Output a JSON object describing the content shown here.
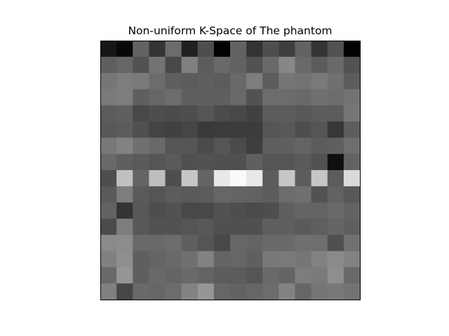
{
  "chart_data": {
    "type": "heatmap",
    "title": "Non-uniform K-Space of The phantom",
    "xlabel": "",
    "ylabel": "",
    "colormap": "gray",
    "value_range": [
      0,
      255
    ],
    "axes_visible": false,
    "grid": false,
    "legend": "none",
    "rows": 16,
    "cols": 16,
    "values": [
      [
        22,
        8,
        98,
        52,
        108,
        32,
        78,
        2,
        98,
        52,
        78,
        62,
        98,
        52,
        82,
        2
      ],
      [
        95,
        102,
        82,
        115,
        72,
        128,
        92,
        105,
        98,
        82,
        105,
        135,
        105,
        92,
        105,
        82
      ],
      [
        118,
        125,
        122,
        108,
        95,
        92,
        95,
        92,
        105,
        125,
        92,
        118,
        115,
        122,
        112,
        92
      ],
      [
        122,
        125,
        95,
        102,
        108,
        95,
        95,
        95,
        105,
        82,
        108,
        108,
        105,
        112,
        108,
        115
      ],
      [
        92,
        95,
        72,
        78,
        75,
        78,
        85,
        75,
        72,
        65,
        92,
        92,
        88,
        92,
        92,
        118
      ],
      [
        88,
        92,
        80,
        68,
        65,
        70,
        58,
        60,
        60,
        60,
        85,
        88,
        78,
        85,
        55,
        92
      ],
      [
        120,
        130,
        112,
        105,
        85,
        85,
        75,
        85,
        75,
        62,
        95,
        95,
        100,
        92,
        95,
        110
      ],
      [
        105,
        95,
        90,
        85,
        90,
        80,
        82,
        80,
        80,
        95,
        85,
        85,
        90,
        82,
        15,
        98
      ],
      [
        78,
        192,
        100,
        190,
        78,
        198,
        100,
        232,
        250,
        232,
        92,
        198,
        92,
        198,
        92,
        218
      ],
      [
        90,
        125,
        90,
        85,
        92,
        90,
        92,
        102,
        100,
        98,
        92,
        108,
        112,
        82,
        98,
        88
      ],
      [
        98,
        52,
        88,
        78,
        82,
        72,
        72,
        82,
        78,
        75,
        78,
        95,
        100,
        100,
        105,
        98
      ],
      [
        75,
        125,
        88,
        82,
        82,
        85,
        88,
        80,
        80,
        80,
        95,
        95,
        90,
        95,
        100,
        95
      ],
      [
        138,
        140,
        105,
        105,
        108,
        95,
        85,
        72,
        102,
        100,
        105,
        105,
        112,
        110,
        80,
        112
      ],
      [
        128,
        142,
        95,
        100,
        105,
        112,
        130,
        100,
        102,
        95,
        120,
        122,
        118,
        130,
        138,
        130
      ],
      [
        105,
        150,
        95,
        105,
        100,
        105,
        100,
        92,
        92,
        85,
        105,
        100,
        125,
        122,
        142,
        105
      ],
      [
        128,
        70,
        105,
        102,
        108,
        130,
        150,
        102,
        98,
        102,
        108,
        130,
        102,
        118,
        120,
        115
      ]
    ]
  }
}
